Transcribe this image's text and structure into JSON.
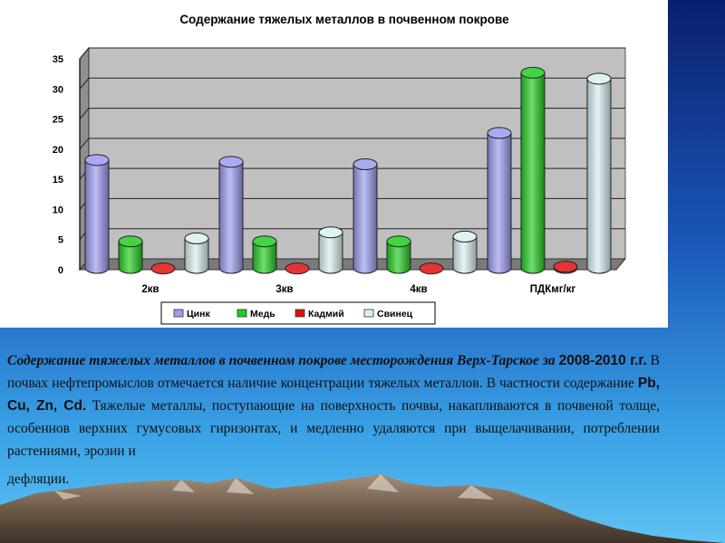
{
  "chart_data": {
    "type": "bar",
    "title": "Содержание тяжелых металлов в почвенном покрове",
    "categories": [
      "2кв",
      "3кв",
      "4кв",
      "ПДКмг/кг"
    ],
    "ylim": [
      0,
      35
    ],
    "yticks": [
      "0",
      "5",
      "10",
      "15",
      "20",
      "25",
      "30",
      "35"
    ],
    "grid": true,
    "legend_position": "bottom",
    "series": [
      {
        "name": "Цинк",
        "color": "#9b9bf0",
        "values": [
          18.5,
          18.2,
          17.8,
          23
        ]
      },
      {
        "name": "Медь",
        "color": "#22cc22",
        "values": [
          5.0,
          5.0,
          5.0,
          33
        ]
      },
      {
        "name": "Кадмий",
        "color": "#e01010",
        "values": [
          0.5,
          0.5,
          0.5,
          0.8
        ]
      },
      {
        "name": "Свинец",
        "color": "#d8f0f2",
        "values": [
          5.5,
          6.5,
          5.8,
          32
        ]
      }
    ]
  },
  "caption": {
    "title": "Содержание тяжелых металлов в почвенном покрове месторождения Верх-Тарское за",
    "years": "2008-2010 г.г.",
    "text1": " В почвах нефтепромыслов отмечается наличие концентрации тяжелых металлов. В частности содержание ",
    "elements": "Pb, Cu, Zn, C",
    "elements_d": "d.",
    "text2": " Тяжелые металлы, поступающие на поверхность почвы, накапливаются в почвеной толще, особеннов верхних гумусовых гиризонтах, и медленно удаляются при выщелачивании, потреблении растениями, эрозии и",
    "last_line": "дефляции."
  }
}
